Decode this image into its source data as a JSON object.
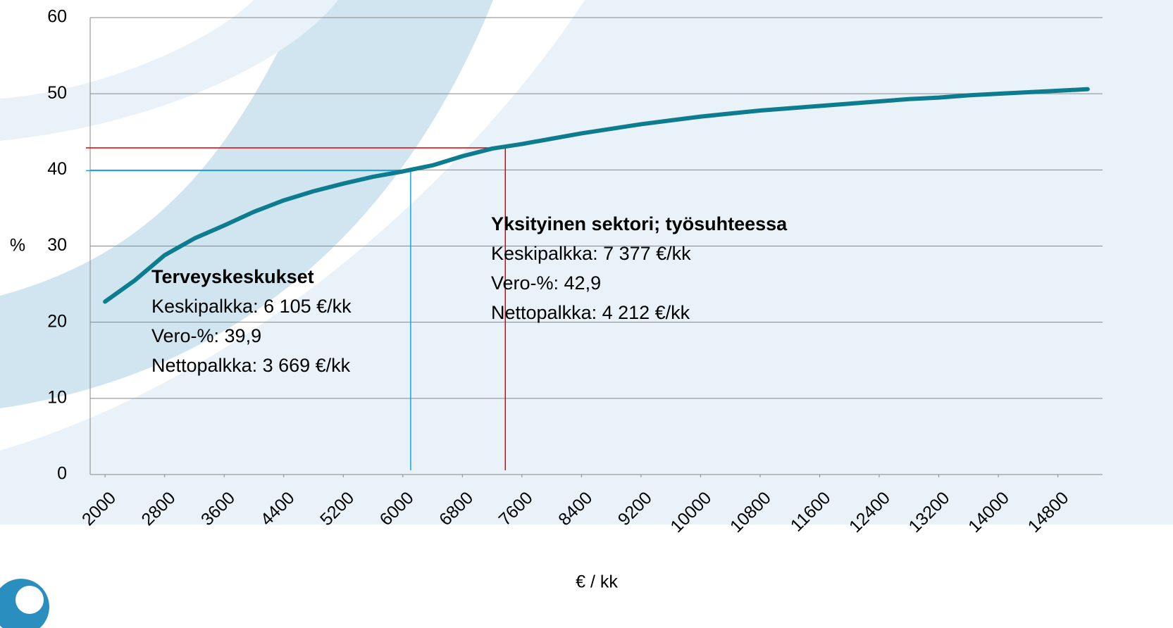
{
  "chart_data": {
    "type": "line",
    "x_label": "€ / kk",
    "y_label": "%",
    "x": [
      2000,
      2400,
      2800,
      3200,
      3600,
      4000,
      4400,
      4800,
      5200,
      5600,
      6000,
      6400,
      6800,
      7200,
      7600,
      8000,
      8400,
      8800,
      9200,
      9600,
      10000,
      10400,
      10800,
      11200,
      11600,
      12000,
      12400,
      12800,
      13200,
      13600,
      14000,
      14400,
      14800,
      15200
    ],
    "series": [
      {
        "color": "#0e7c8f",
        "values": [
          22.7,
          25.5,
          28.8,
          31.0,
          32.7,
          34.5,
          36.0,
          37.2,
          38.2,
          39.1,
          39.8,
          40.6,
          41.8,
          42.8,
          43.4,
          44.1,
          44.8,
          45.4,
          46.0,
          46.5,
          47.0,
          47.4,
          47.8,
          48.1,
          48.4,
          48.7,
          49.0,
          49.3,
          49.5,
          49.8,
          50.0,
          50.2,
          50.4,
          50.6
        ]
      }
    ],
    "xlim": [
      1800,
      15400
    ],
    "xticks": [
      2000,
      2800,
      3600,
      4400,
      5200,
      6000,
      6800,
      7600,
      8400,
      9200,
      10000,
      10800,
      11600,
      12400,
      13200,
      14000,
      14800
    ],
    "ylim": [
      0,
      60
    ],
    "yticks": [
      0,
      10,
      20,
      30,
      40,
      50,
      60
    ],
    "grid": true,
    "annotations": [
      {
        "title": "Terveyskeskukset",
        "lines": [
          "Keskipalkka: 6 105 €/kk",
          "Vero-%: 39,9",
          "Nettopalkka: 3 669 €/kk"
        ],
        "color": "#1ba1e2",
        "x": 6105,
        "y": 39.9
      },
      {
        "title": "Yksityinen sektori; työsuhteessa",
        "lines": [
          "Keskipalkka: 7 377 €/kk",
          "Vero-%: 42,9",
          "Nettopalkka: 4 212 €/kk"
        ],
        "color": "#e00000",
        "x": 7377,
        "y": 42.9
      }
    ]
  }
}
